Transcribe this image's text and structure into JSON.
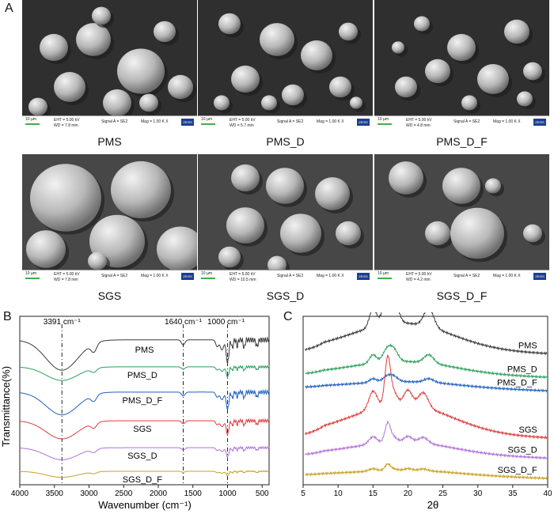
{
  "panels": {
    "A": "A",
    "B": "B",
    "C": "C"
  },
  "sem_images": [
    {
      "caption": "PMS",
      "scale": "10 µm",
      "eht": "EHT = 5.00 kV",
      "wd": "WD = 7.8 mm",
      "signal": "Signal A = SE2",
      "mag": "Mag = 1.00 K X",
      "logo": "ZEISS"
    },
    {
      "caption": "PMS_D",
      "scale": "10 µm",
      "eht": "EHT = 5.00 kV",
      "wd": "WD = 5.7 mm",
      "signal": "Signal A = SE2",
      "mag": "Mag = 1.00 K X",
      "logo": "ZEISS"
    },
    {
      "caption": "PMS_D_F",
      "scale": "10 µm",
      "eht": "EHT = 5.00 kV",
      "wd": "WD = 4.8 mm",
      "signal": "Signal A = SE2",
      "mag": "Mag = 1.00 K X",
      "logo": "ZEISS"
    },
    {
      "caption": "SGS",
      "scale": "10 µm",
      "eht": "EHT = 5.00 kV",
      "wd": "WD = 7.8 mm",
      "signal": "Signal A = SE2",
      "mag": "Mag = 1.00 K X",
      "logo": "ZEISS"
    },
    {
      "caption": "SGS_D",
      "scale": "10 µm",
      "eht": "EHT = 5.00 kV",
      "wd": "WD = 10.5 mm",
      "signal": "Signal A = SE2",
      "mag": "Mag = 1.00 K X",
      "logo": "ZEISS"
    },
    {
      "caption": "SGS_D_F",
      "scale": "10 µm",
      "eht": "EHT = 5.00 kV",
      "wd": "WD = 4.2 mm",
      "signal": "Signal A = SE2",
      "mag": "Mag = 1.00 K X",
      "logo": "ZEISS"
    }
  ],
  "chart_data": [
    {
      "type": "line",
      "xlabel": "Wavenumber (cm⁻¹)",
      "ylabel": "Transmittance(%)",
      "xlim": [
        4000,
        400
      ],
      "x_ticks": [
        4000,
        3500,
        3000,
        2500,
        2000,
        1500,
        1000,
        500
      ],
      "annotations": [
        "3391 cm⁻¹",
        "1640 cm⁻¹",
        "1000 cm⁻¹"
      ],
      "annotation_x": [
        3391,
        1640,
        1000
      ],
      "series": [
        {
          "name": "PMS",
          "color": "#3a3a3a",
          "offset": 86,
          "amp": 1.0
        },
        {
          "name": "PMS_D",
          "color": "#2aa05a",
          "offset": 70,
          "amp": 0.45
        },
        {
          "name": "PMS_D_F",
          "color": "#1f5fbf",
          "offset": 55,
          "amp": 0.75
        },
        {
          "name": "SGS",
          "color": "#e03a3a",
          "offset": 38,
          "amp": 0.6
        },
        {
          "name": "SGS_D",
          "color": "#b070d8",
          "offset": 22,
          "amp": 0.4
        },
        {
          "name": "SGS_D_F",
          "color": "#c9a020",
          "offset": 8,
          "amp": 0.2
        }
      ]
    },
    {
      "type": "line",
      "xlabel": "2θ",
      "xlim": [
        5,
        40
      ],
      "x_ticks": [
        5,
        10,
        15,
        20,
        25,
        30,
        35,
        40
      ],
      "series": [
        {
          "name": "PMS",
          "color": "#3a3a3a",
          "offset": 80,
          "amp": 1.0,
          "profile": "C"
        },
        {
          "name": "PMS_D",
          "color": "#2aa05a",
          "offset": 66,
          "amp": 0.45,
          "profile": "C"
        },
        {
          "name": "PMS_D_F",
          "color": "#1f5fbf",
          "offset": 58,
          "amp": 0.2,
          "profile": "C"
        },
        {
          "name": "SGS",
          "color": "#e03a3a",
          "offset": 30,
          "amp": 1.1,
          "profile": "A"
        },
        {
          "name": "SGS_D",
          "color": "#b070d8",
          "offset": 18,
          "amp": 0.45,
          "profile": "A"
        },
        {
          "name": "SGS_D_F",
          "color": "#c9a020",
          "offset": 6,
          "amp": 0.15,
          "profile": "A"
        }
      ]
    }
  ]
}
